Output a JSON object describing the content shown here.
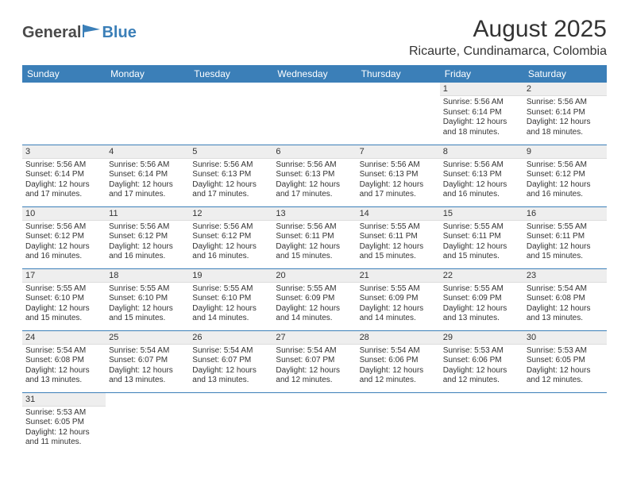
{
  "logo": {
    "general": "General",
    "blue": "Blue"
  },
  "title": "August 2025",
  "location": "Ricaurte, Cundinamarca, Colombia",
  "header_bg": "#3b7fb8",
  "header_fg": "#ffffff",
  "daynum_bg": "#eeeeee",
  "row_border": "#3b7fb8",
  "weekdays": [
    "Sunday",
    "Monday",
    "Tuesday",
    "Wednesday",
    "Thursday",
    "Friday",
    "Saturday"
  ],
  "weeks": [
    [
      null,
      null,
      null,
      null,
      null,
      {
        "n": "1",
        "sr": "Sunrise: 5:56 AM",
        "ss": "Sunset: 6:14 PM",
        "dl": "Daylight: 12 hours and 18 minutes."
      },
      {
        "n": "2",
        "sr": "Sunrise: 5:56 AM",
        "ss": "Sunset: 6:14 PM",
        "dl": "Daylight: 12 hours and 18 minutes."
      }
    ],
    [
      {
        "n": "3",
        "sr": "Sunrise: 5:56 AM",
        "ss": "Sunset: 6:14 PM",
        "dl": "Daylight: 12 hours and 17 minutes."
      },
      {
        "n": "4",
        "sr": "Sunrise: 5:56 AM",
        "ss": "Sunset: 6:14 PM",
        "dl": "Daylight: 12 hours and 17 minutes."
      },
      {
        "n": "5",
        "sr": "Sunrise: 5:56 AM",
        "ss": "Sunset: 6:13 PM",
        "dl": "Daylight: 12 hours and 17 minutes."
      },
      {
        "n": "6",
        "sr": "Sunrise: 5:56 AM",
        "ss": "Sunset: 6:13 PM",
        "dl": "Daylight: 12 hours and 17 minutes."
      },
      {
        "n": "7",
        "sr": "Sunrise: 5:56 AM",
        "ss": "Sunset: 6:13 PM",
        "dl": "Daylight: 12 hours and 17 minutes."
      },
      {
        "n": "8",
        "sr": "Sunrise: 5:56 AM",
        "ss": "Sunset: 6:13 PM",
        "dl": "Daylight: 12 hours and 16 minutes."
      },
      {
        "n": "9",
        "sr": "Sunrise: 5:56 AM",
        "ss": "Sunset: 6:12 PM",
        "dl": "Daylight: 12 hours and 16 minutes."
      }
    ],
    [
      {
        "n": "10",
        "sr": "Sunrise: 5:56 AM",
        "ss": "Sunset: 6:12 PM",
        "dl": "Daylight: 12 hours and 16 minutes."
      },
      {
        "n": "11",
        "sr": "Sunrise: 5:56 AM",
        "ss": "Sunset: 6:12 PM",
        "dl": "Daylight: 12 hours and 16 minutes."
      },
      {
        "n": "12",
        "sr": "Sunrise: 5:56 AM",
        "ss": "Sunset: 6:12 PM",
        "dl": "Daylight: 12 hours and 16 minutes."
      },
      {
        "n": "13",
        "sr": "Sunrise: 5:56 AM",
        "ss": "Sunset: 6:11 PM",
        "dl": "Daylight: 12 hours and 15 minutes."
      },
      {
        "n": "14",
        "sr": "Sunrise: 5:55 AM",
        "ss": "Sunset: 6:11 PM",
        "dl": "Daylight: 12 hours and 15 minutes."
      },
      {
        "n": "15",
        "sr": "Sunrise: 5:55 AM",
        "ss": "Sunset: 6:11 PM",
        "dl": "Daylight: 12 hours and 15 minutes."
      },
      {
        "n": "16",
        "sr": "Sunrise: 5:55 AM",
        "ss": "Sunset: 6:11 PM",
        "dl": "Daylight: 12 hours and 15 minutes."
      }
    ],
    [
      {
        "n": "17",
        "sr": "Sunrise: 5:55 AM",
        "ss": "Sunset: 6:10 PM",
        "dl": "Daylight: 12 hours and 15 minutes."
      },
      {
        "n": "18",
        "sr": "Sunrise: 5:55 AM",
        "ss": "Sunset: 6:10 PM",
        "dl": "Daylight: 12 hours and 15 minutes."
      },
      {
        "n": "19",
        "sr": "Sunrise: 5:55 AM",
        "ss": "Sunset: 6:10 PM",
        "dl": "Daylight: 12 hours and 14 minutes."
      },
      {
        "n": "20",
        "sr": "Sunrise: 5:55 AM",
        "ss": "Sunset: 6:09 PM",
        "dl": "Daylight: 12 hours and 14 minutes."
      },
      {
        "n": "21",
        "sr": "Sunrise: 5:55 AM",
        "ss": "Sunset: 6:09 PM",
        "dl": "Daylight: 12 hours and 14 minutes."
      },
      {
        "n": "22",
        "sr": "Sunrise: 5:55 AM",
        "ss": "Sunset: 6:09 PM",
        "dl": "Daylight: 12 hours and 13 minutes."
      },
      {
        "n": "23",
        "sr": "Sunrise: 5:54 AM",
        "ss": "Sunset: 6:08 PM",
        "dl": "Daylight: 12 hours and 13 minutes."
      }
    ],
    [
      {
        "n": "24",
        "sr": "Sunrise: 5:54 AM",
        "ss": "Sunset: 6:08 PM",
        "dl": "Daylight: 12 hours and 13 minutes."
      },
      {
        "n": "25",
        "sr": "Sunrise: 5:54 AM",
        "ss": "Sunset: 6:07 PM",
        "dl": "Daylight: 12 hours and 13 minutes."
      },
      {
        "n": "26",
        "sr": "Sunrise: 5:54 AM",
        "ss": "Sunset: 6:07 PM",
        "dl": "Daylight: 12 hours and 13 minutes."
      },
      {
        "n": "27",
        "sr": "Sunrise: 5:54 AM",
        "ss": "Sunset: 6:07 PM",
        "dl": "Daylight: 12 hours and 12 minutes."
      },
      {
        "n": "28",
        "sr": "Sunrise: 5:54 AM",
        "ss": "Sunset: 6:06 PM",
        "dl": "Daylight: 12 hours and 12 minutes."
      },
      {
        "n": "29",
        "sr": "Sunrise: 5:53 AM",
        "ss": "Sunset: 6:06 PM",
        "dl": "Daylight: 12 hours and 12 minutes."
      },
      {
        "n": "30",
        "sr": "Sunrise: 5:53 AM",
        "ss": "Sunset: 6:05 PM",
        "dl": "Daylight: 12 hours and 12 minutes."
      }
    ],
    [
      {
        "n": "31",
        "sr": "Sunrise: 5:53 AM",
        "ss": "Sunset: 6:05 PM",
        "dl": "Daylight: 12 hours and 11 minutes."
      },
      null,
      null,
      null,
      null,
      null,
      null
    ]
  ]
}
